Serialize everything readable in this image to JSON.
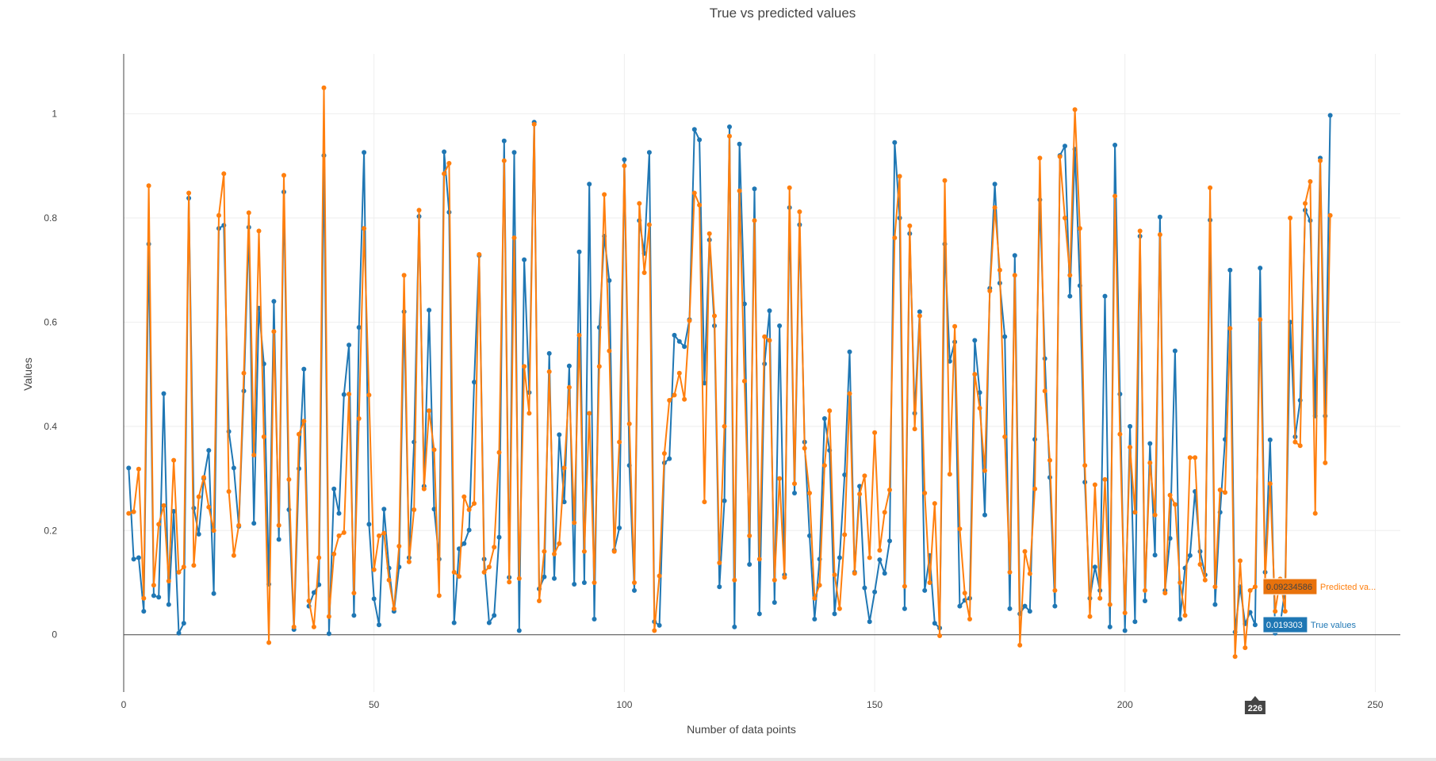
{
  "chart_data": {
    "type": "line",
    "title": "True vs predicted values",
    "xlabel": "Number of data points",
    "ylabel": "Values",
    "xlim": [
      0,
      255
    ],
    "ylim": [
      -0.11,
      1.115
    ],
    "xticks": [
      0,
      50,
      100,
      150,
      200,
      250
    ],
    "yticks": [
      0,
      0.2,
      0.4,
      0.6,
      0.8,
      1
    ],
    "ytick_labels": [
      "0",
      "0.2",
      "0.4",
      "0.6",
      "0.8",
      "1"
    ],
    "grid": true,
    "series": [
      {
        "name": "True values",
        "color": "#1f77b4",
        "values": [
          0.32,
          0.145,
          0.148,
          0.045,
          0.75,
          0.075,
          0.072,
          0.463,
          0.058,
          0.237,
          0.003,
          0.022,
          0.838,
          0.243,
          0.193,
          0.3,
          0.354,
          0.079,
          0.78,
          0.786,
          0.39,
          0.32,
          0.208,
          0.468,
          0.782,
          0.214,
          0.627,
          0.52,
          0.097,
          0.64,
          0.183,
          0.85,
          0.24,
          0.01,
          0.319,
          0.51,
          0.055,
          0.081,
          0.096,
          0.92,
          0.002,
          0.28,
          0.233,
          0.461,
          0.556,
          0.037,
          0.59,
          0.926,
          0.212,
          0.069,
          0.019,
          0.241,
          0.128,
          0.045,
          0.13,
          0.62,
          0.148,
          0.37,
          0.803,
          0.285,
          0.623,
          0.241,
          0.145,
          0.927,
          0.811,
          0.023,
          0.165,
          0.175,
          0.201,
          0.485,
          0.728,
          0.145,
          0.023,
          0.037,
          0.187,
          0.948,
          0.11,
          0.926,
          0.008,
          0.72,
          0.465,
          0.984,
          0.088,
          0.111,
          0.54,
          0.108,
          0.384,
          0.255,
          0.516,
          0.097,
          0.735,
          0.1,
          0.865,
          0.03,
          0.59,
          0.765,
          0.68,
          0.162,
          0.205,
          0.912,
          0.325,
          0.085,
          0.795,
          0.732,
          0.926,
          0.025,
          0.018,
          0.33,
          0.338,
          0.575,
          0.563,
          0.553,
          0.605,
          0.97,
          0.95,
          0.483,
          0.758,
          0.593,
          0.092,
          0.257,
          0.975,
          0.015,
          0.942,
          0.635,
          0.135,
          0.856,
          0.04,
          0.52,
          0.622,
          0.062,
          0.593,
          0.115,
          0.82,
          0.272,
          0.787,
          0.37,
          0.19,
          0.03,
          0.145,
          0.415,
          0.354,
          0.04,
          0.148,
          0.307,
          0.543,
          0.12,
          0.285,
          0.09,
          0.025,
          0.082,
          0.144,
          0.118,
          0.18,
          0.945,
          0.8,
          0.05,
          0.77,
          0.425,
          0.62,
          0.085,
          0.152,
          0.022,
          0.013,
          0.75,
          0.525,
          0.562,
          0.055,
          0.066,
          0.07,
          0.565,
          0.465,
          0.23,
          0.665,
          0.865,
          0.675,
          0.572,
          0.05,
          0.728,
          0.04,
          0.055,
          0.045,
          0.375,
          0.835,
          0.53,
          0.302,
          0.055,
          0.92,
          0.938,
          0.65,
          0.932,
          0.67,
          0.293,
          0.07,
          0.13,
          0.085,
          0.65,
          0.015,
          0.94,
          0.462,
          0.008,
          0.4,
          0.025,
          0.765,
          0.065,
          0.367,
          0.153,
          0.802,
          0.085,
          0.185,
          0.545,
          0.03,
          0.128,
          0.152,
          0.275,
          0.16,
          0.115,
          0.796,
          0.058,
          0.235,
          0.375,
          0.7,
          0.005,
          0.092,
          0.021,
          0.043,
          0.019,
          0.704,
          0.12,
          0.374,
          0.003,
          0.019,
          0.09,
          0.6,
          0.38,
          0.45,
          0.815,
          0.795,
          0.42,
          0.915,
          0.42,
          0.997
        ]
      },
      {
        "name": "Predicted values",
        "color": "#ff7f0e",
        "values": [
          0.233,
          0.236,
          0.318,
          0.07,
          0.862,
          0.095,
          0.212,
          0.248,
          0.103,
          0.335,
          0.12,
          0.13,
          0.848,
          0.133,
          0.265,
          0.302,
          0.245,
          0.2,
          0.805,
          0.885,
          0.275,
          0.152,
          0.21,
          0.502,
          0.81,
          0.345,
          0.775,
          0.38,
          -0.015,
          0.582,
          0.21,
          0.882,
          0.298,
          0.015,
          0.385,
          0.41,
          0.065,
          0.015,
          0.148,
          1.05,
          0.035,
          0.155,
          0.19,
          0.196,
          0.462,
          0.08,
          0.415,
          0.78,
          0.46,
          0.125,
          0.19,
          0.195,
          0.105,
          0.05,
          0.17,
          0.69,
          0.14,
          0.24,
          0.815,
          0.28,
          0.43,
          0.355,
          0.075,
          0.885,
          0.905,
          0.12,
          0.112,
          0.265,
          0.24,
          0.252,
          0.73,
          0.12,
          0.13,
          0.168,
          0.35,
          0.91,
          0.101,
          0.762,
          0.108,
          0.515,
          0.425,
          0.98,
          0.065,
          0.16,
          0.505,
          0.155,
          0.175,
          0.32,
          0.475,
          0.215,
          0.575,
          0.16,
          0.425,
          0.1,
          0.515,
          0.845,
          0.545,
          0.16,
          0.37,
          0.9,
          0.405,
          0.1,
          0.828,
          0.695,
          0.787,
          0.008,
          0.113,
          0.348,
          0.45,
          0.46,
          0.502,
          0.452,
          0.603,
          0.848,
          0.825,
          0.255,
          0.77,
          0.612,
          0.138,
          0.4,
          0.957,
          0.105,
          0.852,
          0.487,
          0.19,
          0.795,
          0.145,
          0.572,
          0.565,
          0.105,
          0.3,
          0.11,
          0.858,
          0.29,
          0.812,
          0.358,
          0.272,
          0.07,
          0.095,
          0.325,
          0.43,
          0.115,
          0.05,
          0.192,
          0.463,
          0.118,
          0.27,
          0.305,
          0.148,
          0.388,
          0.162,
          0.235,
          0.278,
          0.762,
          0.88,
          0.093,
          0.785,
          0.395,
          0.612,
          0.272,
          0.1,
          0.252,
          -0.002,
          0.872,
          0.308,
          0.592,
          0.203,
          0.08,
          0.03,
          0.5,
          0.435,
          0.315,
          0.66,
          0.82,
          0.7,
          0.38,
          0.12,
          0.69,
          -0.02,
          0.16,
          0.117,
          0.28,
          0.915,
          0.468,
          0.335,
          0.085,
          0.918,
          0.8,
          0.69,
          1.008,
          0.78,
          0.325,
          0.035,
          0.288,
          0.07,
          0.298,
          0.058,
          0.842,
          0.385,
          0.042,
          0.36,
          0.235,
          0.775,
          0.085,
          0.33,
          0.23,
          0.768,
          0.08,
          0.268,
          0.25,
          0.1,
          0.037,
          0.34,
          0.34,
          0.135,
          0.105,
          0.858,
          0.092,
          0.278,
          0.273,
          0.588,
          -0.042,
          0.142,
          -0.025,
          0.085,
          0.092,
          0.605,
          0.105,
          0.29,
          0.045,
          0.107,
          0.045,
          0.8,
          0.37,
          0.363,
          0.828,
          0.87,
          0.233,
          0.91,
          0.33,
          0.805
        ]
      }
    ],
    "hover": {
      "x_label": "226",
      "predicted_value": "0.09234586",
      "predicted_name": "Predicted va...",
      "true_value": "0.019303",
      "true_name": "True values"
    }
  }
}
